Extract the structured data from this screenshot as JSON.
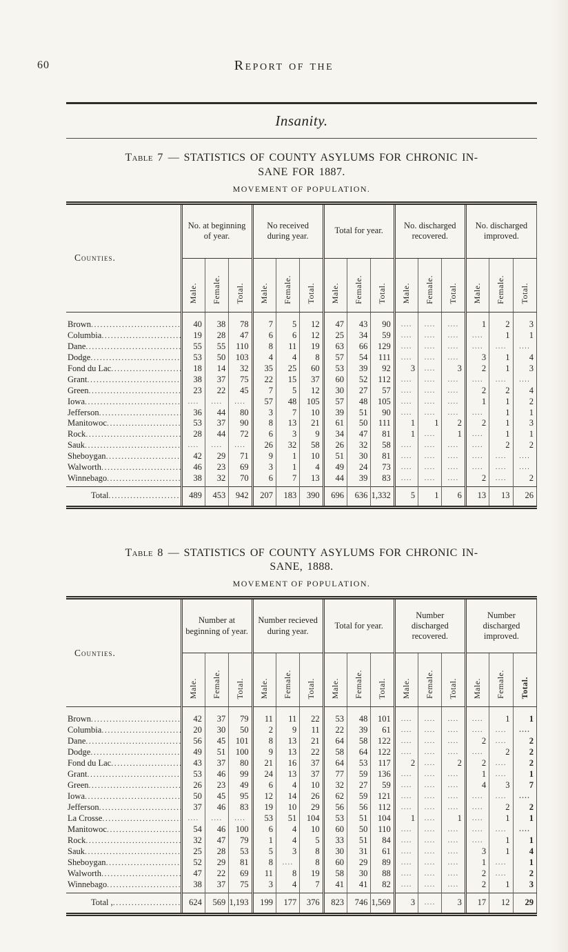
{
  "page": {
    "number": "60",
    "running_title": "Report of the",
    "section_title": "Insanity."
  },
  "tables": [
    {
      "caption_label": "Table 7",
      "caption_line1": "— STATISTICS OF COUNTY ASYLUMS FOR CHRONIC IN-",
      "caption_line2": "SANE FOR 1887.",
      "subtitle": "MOVEMENT OF POPULATION.",
      "counties_header": "Counties.",
      "group_headers": [
        "No. at beginning of year.",
        "No received during year.",
        "Total for year.",
        "No. discharged recovered.",
        "No. discharged improved."
      ],
      "sub_headers": [
        "Male.",
        "Female.",
        "Total."
      ],
      "rows": [
        {
          "county": "Brown",
          "cells": [
            "40",
            "38",
            "78",
            "7",
            "5",
            "12",
            "47",
            "43",
            "90",
            "",
            "",
            "",
            "1",
            "2",
            "3"
          ]
        },
        {
          "county": "Columbia",
          "cells": [
            "19",
            "28",
            "47",
            "6",
            "6",
            "12",
            "25",
            "34",
            "59",
            "",
            "",
            "",
            "",
            "1",
            "1"
          ]
        },
        {
          "county": "Dane",
          "cells": [
            "55",
            "55",
            "110",
            "8",
            "11",
            "19",
            "63",
            "66",
            "129",
            "",
            "",
            "",
            "",
            "",
            ""
          ]
        },
        {
          "county": "Dodge",
          "cells": [
            "53",
            "50",
            "103",
            "4",
            "4",
            "8",
            "57",
            "54",
            "111",
            "",
            "",
            "",
            "3",
            "1",
            "4"
          ]
        },
        {
          "county": "Fond du Lac",
          "cells": [
            "18",
            "14",
            "32",
            "35",
            "25",
            "60",
            "53",
            "39",
            "92",
            "3",
            "",
            "3",
            "2",
            "1",
            "3"
          ]
        },
        {
          "county": "Grant",
          "cells": [
            "38",
            "37",
            "75",
            "22",
            "15",
            "37",
            "60",
            "52",
            "112",
            "",
            "",
            "",
            "",
            "",
            ""
          ]
        },
        {
          "county": "Green",
          "cells": [
            "23",
            "22",
            "45",
            "7",
            "5",
            "12",
            "30",
            "27",
            "57",
            "",
            "",
            "",
            "2",
            "2",
            "4"
          ]
        },
        {
          "county": "Iowa",
          "cells": [
            "",
            "",
            "",
            "57",
            "48",
            "105",
            "57",
            "48",
            "105",
            "",
            "",
            "",
            "1",
            "1",
            "2"
          ]
        },
        {
          "county": "Jefferson",
          "cells": [
            "36",
            "44",
            "80",
            "3",
            "7",
            "10",
            "39",
            "51",
            "90",
            "",
            "",
            "",
            "",
            "1",
            "1"
          ]
        },
        {
          "county": "Manitowoc",
          "cells": [
            "53",
            "37",
            "90",
            "8",
            "13",
            "21",
            "61",
            "50",
            "111",
            "1",
            "1",
            "2",
            "2",
            "1",
            "3"
          ]
        },
        {
          "county": "Rock",
          "cells": [
            "28",
            "44",
            "72",
            "6",
            "3",
            "9",
            "34",
            "47",
            "81",
            "1",
            "",
            "1",
            "",
            "1",
            "1"
          ]
        },
        {
          "county": "Sauk",
          "cells": [
            "",
            "",
            "",
            "26",
            "32",
            "58",
            "26",
            "32",
            "58",
            "",
            "",
            "",
            "",
            "2",
            "2"
          ]
        },
        {
          "county": "Sheboygan",
          "cells": [
            "42",
            "29",
            "71",
            "9",
            "1",
            "10",
            "51",
            "30",
            "81",
            "",
            "",
            "",
            "",
            "",
            ""
          ]
        },
        {
          "county": "Walworth",
          "cells": [
            "46",
            "23",
            "69",
            "3",
            "1",
            "4",
            "49",
            "24",
            "73",
            "",
            "",
            "",
            "",
            "",
            ""
          ]
        },
        {
          "county": "Winnebago",
          "cells": [
            "38",
            "32",
            "70",
            "6",
            "7",
            "13",
            "44",
            "39",
            "83",
            "",
            "",
            "",
            "2",
            "",
            "2"
          ]
        }
      ],
      "total_label": "Total",
      "total_cells": [
        "489",
        "453",
        "942",
        "207",
        "183",
        "390",
        "696",
        "636",
        "1,332",
        "5",
        "1",
        "6",
        "13",
        "13",
        "26"
      ]
    },
    {
      "caption_label": "Table 8",
      "caption_line1": "— STATISTICS OF COUNTY ASYLUMS FOR CHRONIC IN-",
      "caption_line2": "SANE, 1888.",
      "subtitle": "MOVEMENT OF POPULATION.",
      "counties_header": "Counties.",
      "group_headers": [
        "Number at beginning of year.",
        "Number recieved during year.",
        "Total for year.",
        "Number discharged recovered.",
        "Number discharged improved."
      ],
      "sub_headers": [
        "Male.",
        "Female.",
        "Total."
      ],
      "rows": [
        {
          "county": "Brown",
          "cells": [
            "42",
            "37",
            "79",
            "11",
            "11",
            "22",
            "53",
            "48",
            "101",
            "",
            "",
            "",
            "",
            "1",
            "1"
          ]
        },
        {
          "county": "Columbia",
          "cells": [
            "20",
            "30",
            "50",
            "2",
            "9",
            "11",
            "22",
            "39",
            "61",
            "",
            "",
            "",
            "",
            "",
            ""
          ]
        },
        {
          "county": "Dane",
          "cells": [
            "56",
            "45",
            "101",
            "8",
            "13",
            "21",
            "64",
            "58",
            "122",
            "",
            "",
            "",
            "2",
            "",
            "2"
          ]
        },
        {
          "county": "Dodge",
          "cells": [
            "49",
            "51",
            "100",
            "9",
            "13",
            "22",
            "58",
            "64",
            "122",
            "",
            "",
            "",
            "",
            "2",
            "2"
          ]
        },
        {
          "county": "Fond du Lac",
          "cells": [
            "43",
            "37",
            "80",
            "21",
            "16",
            "37",
            "64",
            "53",
            "117",
            "2",
            "",
            "2",
            "2",
            "",
            "2"
          ]
        },
        {
          "county": "Grant",
          "cells": [
            "53",
            "46",
            "99",
            "24",
            "13",
            "37",
            "77",
            "59",
            "136",
            "",
            "",
            "",
            "1",
            "",
            "1"
          ]
        },
        {
          "county": "Green",
          "cells": [
            "26",
            "23",
            "49",
            "6",
            "4",
            "10",
            "32",
            "27",
            "59",
            "",
            "",
            "",
            "4",
            "3",
            "7"
          ]
        },
        {
          "county": "Iowa",
          "cells": [
            "50",
            "45",
            "95",
            "12",
            "14",
            "26",
            "62",
            "59",
            "121",
            "",
            "",
            "",
            "",
            "",
            ""
          ]
        },
        {
          "county": "Jefferson",
          "cells": [
            "37",
            "46",
            "83",
            "19",
            "10",
            "29",
            "56",
            "56",
            "112",
            "",
            "",
            "",
            "",
            "2",
            "2"
          ]
        },
        {
          "county": "La Crosse",
          "cells": [
            "",
            "",
            "",
            "53",
            "51",
            "104",
            "53",
            "51",
            "104",
            "1",
            "",
            "1",
            "",
            "1",
            "1"
          ]
        },
        {
          "county": "Manitowoc",
          "cells": [
            "54",
            "46",
            "100",
            "6",
            "4",
            "10",
            "60",
            "50",
            "110",
            "",
            "",
            "",
            "",
            "",
            ""
          ]
        },
        {
          "county": "Rock",
          "cells": [
            "32",
            "47",
            "79",
            "1",
            "4",
            "5",
            "33",
            "51",
            "84",
            "",
            "",
            "",
            "",
            "1",
            "1"
          ]
        },
        {
          "county": "Sauk",
          "cells": [
            "25",
            "28",
            "53",
            "5",
            "3",
            "8",
            "30",
            "31",
            "61",
            "",
            "",
            "",
            "3",
            "1",
            "4"
          ]
        },
        {
          "county": "Sheboygan",
          "cells": [
            "52",
            "29",
            "81",
            "8",
            "",
            "8",
            "60",
            "29",
            "89",
            "",
            "",
            "",
            "1",
            "",
            "1"
          ]
        },
        {
          "county": "Walworth",
          "cells": [
            "47",
            "22",
            "69",
            "11",
            "8",
            "19",
            "58",
            "30",
            "88",
            "",
            "",
            "",
            "2",
            "",
            "2"
          ]
        },
        {
          "county": "Winnebago",
          "cells": [
            "38",
            "37",
            "75",
            "3",
            "4",
            "7",
            "41",
            "41",
            "82",
            "",
            "",
            "",
            "2",
            "1",
            "3"
          ]
        }
      ],
      "total_label": "Total ,",
      "total_cells": [
        "624",
        "569",
        "1,193",
        "199",
        "177",
        "376",
        "823",
        "746",
        "1,569",
        "3",
        "",
        "3",
        "17",
        "12",
        "29"
      ]
    }
  ]
}
